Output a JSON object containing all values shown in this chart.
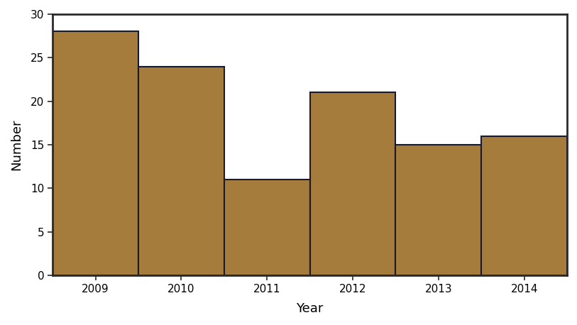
{
  "years": [
    2009,
    2010,
    2011,
    2012,
    2013,
    2014
  ],
  "values": [
    28,
    24,
    11,
    21,
    15,
    16
  ],
  "bar_color": "#A67C3C",
  "bar_edge_color": "#1a1a2e",
  "xlabel": "Year",
  "ylabel": "Number",
  "ylim": [
    0,
    30
  ],
  "yticks": [
    0,
    5,
    10,
    15,
    20,
    25,
    30
  ],
  "background_color": "#ffffff",
  "spine_color": "#2a2a2a",
  "label_fontsize": 13,
  "tick_fontsize": 11
}
